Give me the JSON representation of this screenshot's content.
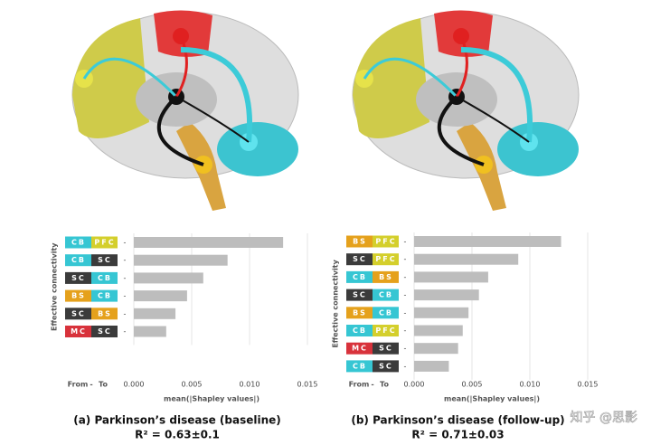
{
  "chart_data": [
    {
      "type": "bar",
      "orientation": "horizontal",
      "caption": "(a) Parkinson’s disease (baseline)",
      "r2": "R² = 0.63±0.1",
      "ylabel": "Effective connectivity",
      "xlabel": "mean(|Shapley values|)",
      "from_label": "From",
      "to_label": "To",
      "separator": "-",
      "from": [
        "CB",
        "CB",
        "SC",
        "BS",
        "SC",
        "MC"
      ],
      "to": [
        "PFC",
        "SC",
        "CB",
        "CB",
        "BS",
        "SC"
      ],
      "values": [
        0.0129,
        0.0081,
        0.006,
        0.0046,
        0.0036,
        0.0028
      ],
      "color": "#bdbdbd",
      "xlim": [
        0,
        0.015
      ],
      "xticks": [
        {
          "value": 0,
          "label": "0.000"
        },
        0.005,
        {
          "value": 0.01,
          "label": "0.010"
        },
        0.015
      ],
      "grid": true
    },
    {
      "type": "bar",
      "orientation": "horizontal",
      "caption": "(b) Parkinson’s disease (follow-up)",
      "r2": "R² = 0.71±0.03",
      "ylabel": "Effective connectivity",
      "xlabel": "mean(|Shapley values|)",
      "from_label": "From",
      "to_label": "To",
      "separator": "-",
      "from": [
        "BS",
        "SC",
        "CB",
        "SC",
        "BS",
        "CB",
        "MC",
        "CB"
      ],
      "to": [
        "PFC",
        "PFC",
        "BS",
        "CB",
        "CB",
        "PFC",
        "SC",
        "SC"
      ],
      "values": [
        0.0127,
        0.009,
        0.0064,
        0.0056,
        0.0047,
        0.0042,
        0.0038,
        0.003
      ],
      "color": "#bdbdbd",
      "xlim": [
        0,
        0.015
      ],
      "xticks": [
        {
          "value": 0,
          "label": "0.000"
        },
        0.005,
        {
          "value": 0.01,
          "label": "0.010"
        },
        0.015
      ],
      "grid": true
    }
  ],
  "region_colors": {
    "CB": "#36c6d3",
    "SC": "#3b3b3b",
    "BS": "#e5a11c",
    "MC": "#d8323b",
    "PFC": "#d4cf2c"
  },
  "watermark": "知乎 @思影"
}
